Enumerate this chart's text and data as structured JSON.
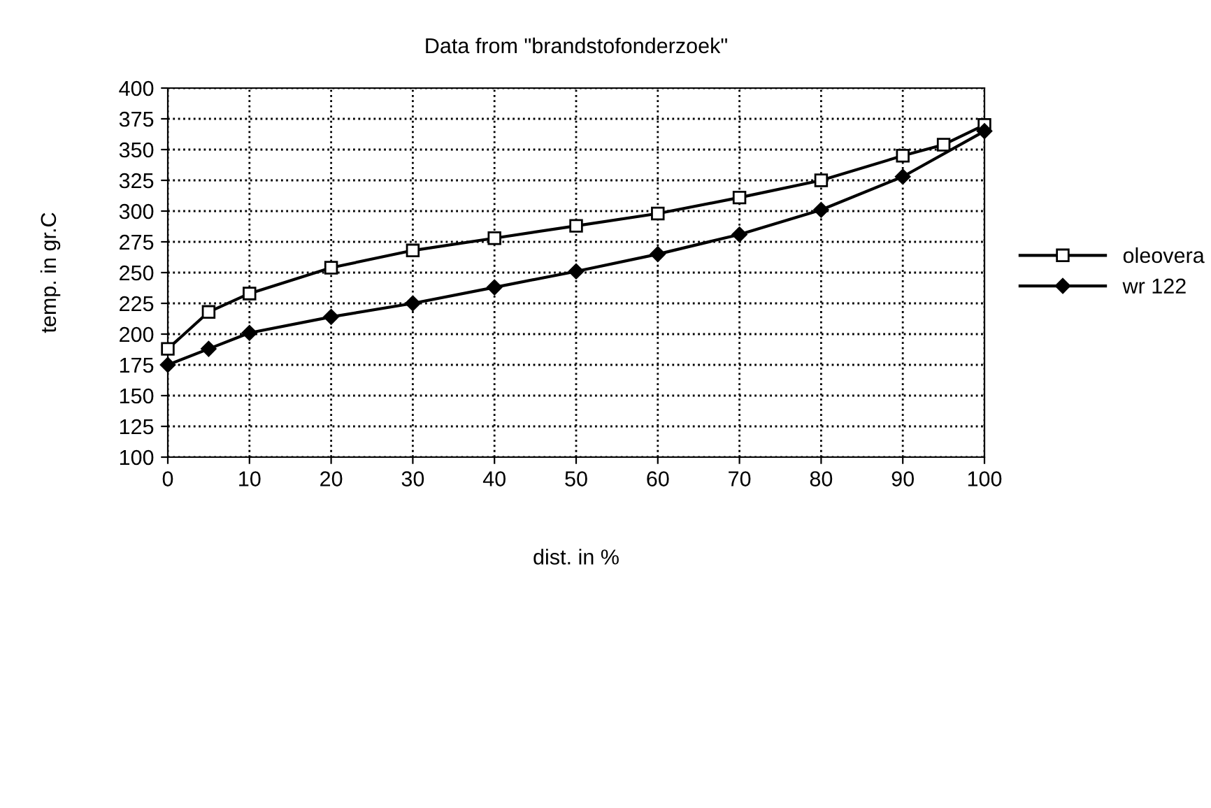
{
  "chart_data": {
    "type": "line",
    "title": "Data from \"brandstofonderzoek\"",
    "xlabel": "dist. in %",
    "ylabel": "temp. in gr.C",
    "xlim": [
      0,
      100
    ],
    "xticks": [
      0,
      10,
      20,
      30,
      40,
      50,
      60,
      70,
      80,
      90,
      100
    ],
    "ylim": [
      100,
      400
    ],
    "yticks": [
      100,
      125,
      150,
      175,
      200,
      225,
      250,
      275,
      300,
      325,
      350,
      375,
      400
    ],
    "grid": true,
    "legend": "right",
    "line_style": "solid",
    "series": [
      {
        "name": "oleovera",
        "color": "#000000",
        "marker": "square",
        "x": [
          0,
          5,
          10,
          20,
          30,
          40,
          50,
          60,
          70,
          80,
          90,
          95,
          100
        ],
        "values": [
          188,
          218,
          233,
          254,
          268,
          278,
          288,
          298,
          311,
          325,
          345,
          354,
          370
        ]
      },
      {
        "name": "wr 122",
        "color": "#000000",
        "marker": "diamond",
        "x": [
          0,
          5,
          10,
          20,
          30,
          40,
          50,
          60,
          70,
          80,
          90,
          100
        ],
        "values": [
          175,
          188,
          201,
          214,
          225,
          238,
          251,
          265,
          281,
          301,
          328,
          365
        ]
      }
    ]
  }
}
